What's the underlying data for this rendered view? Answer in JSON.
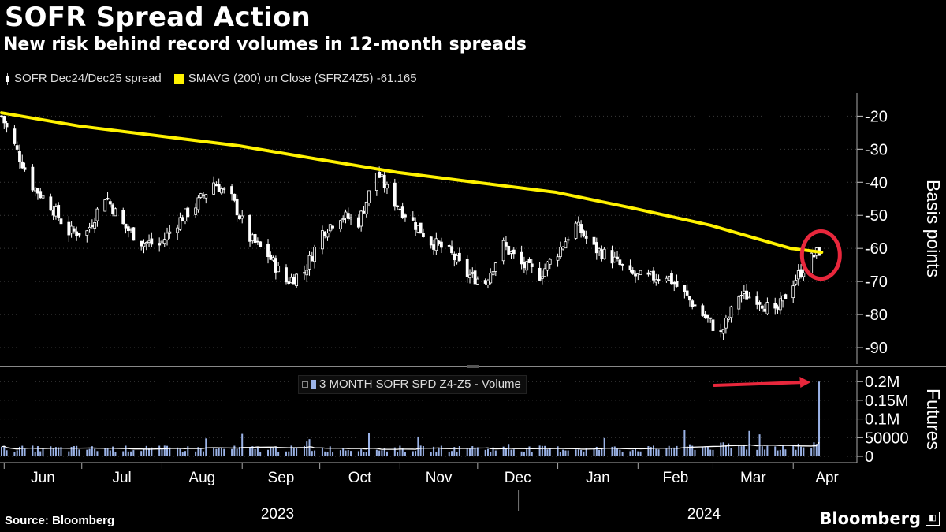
{
  "title": "SOFR Spread Action",
  "subtitle": "New risk behind record volumes in 12-month spreads",
  "legend": {
    "candle_label": "SOFR Dec24/Dec25 spread",
    "sma_label": "SMAVG (200)  on Close (SFRZ4Z5) -61.165"
  },
  "volume_legend": "3 MONTH SOFR SPD Z4-Z5 - Volume",
  "source": "Source: Bloomberg",
  "brand": "Bloomberg",
  "colors": {
    "background": "#000000",
    "candles": "#ffffff",
    "sma": "#fff200",
    "volume_bars": "#9ab2e6",
    "volume_avg": "#ffffff",
    "highlight_circle": "#e8273c",
    "arrow": "#e8273c"
  },
  "chart_data": [
    {
      "type": "candlestick",
      "ylabel": "Basis points",
      "ylim": [
        -95,
        -13
      ],
      "yticks": [
        -20,
        -30,
        -40,
        -50,
        -60,
        -70,
        -80,
        -90
      ],
      "x_months": [
        "Jun",
        "Jul",
        "Aug",
        "Sep",
        "Oct",
        "Nov",
        "Dec",
        "Jan",
        "Feb",
        "Mar",
        "Apr"
      ],
      "x_years": [
        "2023",
        "2024"
      ],
      "close_series": [
        {
          "date": "2023-05-31",
          "close": -20
        },
        {
          "date": "2023-06-05",
          "close": -29
        },
        {
          "date": "2023-06-12",
          "close": -41
        },
        {
          "date": "2023-06-19",
          "close": -47
        },
        {
          "date": "2023-06-26",
          "close": -55
        },
        {
          "date": "2023-07-03",
          "close": -55
        },
        {
          "date": "2023-07-10",
          "close": -44
        },
        {
          "date": "2023-07-17",
          "close": -53
        },
        {
          "date": "2023-07-24",
          "close": -58
        },
        {
          "date": "2023-07-31",
          "close": -59
        },
        {
          "date": "2023-08-07",
          "close": -52
        },
        {
          "date": "2023-08-14",
          "close": -47
        },
        {
          "date": "2023-08-21",
          "close": -40
        },
        {
          "date": "2023-08-28",
          "close": -45
        },
        {
          "date": "2023-09-04",
          "close": -57
        },
        {
          "date": "2023-09-11",
          "close": -62
        },
        {
          "date": "2023-09-18",
          "close": -70
        },
        {
          "date": "2023-09-25",
          "close": -67
        },
        {
          "date": "2023-10-02",
          "close": -55
        },
        {
          "date": "2023-10-09",
          "close": -50
        },
        {
          "date": "2023-10-16",
          "close": -52
        },
        {
          "date": "2023-10-23",
          "close": -37
        },
        {
          "date": "2023-10-30",
          "close": -46
        },
        {
          "date": "2023-11-06",
          "close": -52
        },
        {
          "date": "2023-11-13",
          "close": -58
        },
        {
          "date": "2023-11-20",
          "close": -61
        },
        {
          "date": "2023-11-27",
          "close": -68
        },
        {
          "date": "2023-12-04",
          "close": -70
        },
        {
          "date": "2023-12-11",
          "close": -59
        },
        {
          "date": "2023-12-18",
          "close": -65
        },
        {
          "date": "2023-12-25",
          "close": -68
        },
        {
          "date": "2024-01-01",
          "close": -61
        },
        {
          "date": "2024-01-08",
          "close": -53
        },
        {
          "date": "2024-01-15",
          "close": -60
        },
        {
          "date": "2024-01-22",
          "close": -63
        },
        {
          "date": "2024-01-29",
          "close": -68
        },
        {
          "date": "2024-02-05",
          "close": -69
        },
        {
          "date": "2024-02-12",
          "close": -68
        },
        {
          "date": "2024-02-19",
          "close": -74
        },
        {
          "date": "2024-02-26",
          "close": -80
        },
        {
          "date": "2024-03-04",
          "close": -86
        },
        {
          "date": "2024-03-11",
          "close": -74
        },
        {
          "date": "2024-03-18",
          "close": -75
        },
        {
          "date": "2024-03-25",
          "close": -80
        },
        {
          "date": "2024-04-01",
          "close": -70
        },
        {
          "date": "2024-04-08",
          "close": -63
        },
        {
          "date": "2024-04-12",
          "close": -60
        }
      ],
      "sma_200": [
        {
          "date": "2023-05-31",
          "value": -19
        },
        {
          "date": "2023-06-30",
          "value": -23
        },
        {
          "date": "2023-07-31",
          "value": -26
        },
        {
          "date": "2023-08-31",
          "value": -29
        },
        {
          "date": "2023-09-30",
          "value": -33
        },
        {
          "date": "2023-10-31",
          "value": -37
        },
        {
          "date": "2023-11-30",
          "value": -40
        },
        {
          "date": "2023-12-31",
          "value": -43
        },
        {
          "date": "2024-01-31",
          "value": -48
        },
        {
          "date": "2024-02-29",
          "value": -53
        },
        {
          "date": "2024-03-31",
          "value": -60
        },
        {
          "date": "2024-04-12",
          "value": -61.165
        }
      ]
    },
    {
      "type": "bar",
      "title": "3 MONTH SOFR SPD Z4-Z5 - Volume",
      "ylabel": "Futures",
      "ylim": [
        0,
        230000
      ],
      "yticks": [
        0,
        50000,
        100000,
        150000,
        200000
      ],
      "ytick_labels": [
        "0",
        "50000",
        "0.1M",
        "0.15M",
        "0.2M"
      ],
      "notable_values": [
        {
          "date": "2023-09-01",
          "value": 60000
        },
        {
          "date": "2023-10-20",
          "value": 62000
        },
        {
          "date": "2024-03-15",
          "value": 68000
        },
        {
          "date": "2024-04-11",
          "value": 200000
        }
      ],
      "typical_level": 20000,
      "moving_average_end": 40000
    }
  ]
}
